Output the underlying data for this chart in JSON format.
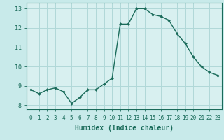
{
  "x": [
    0,
    1,
    2,
    3,
    4,
    5,
    6,
    7,
    8,
    9,
    10,
    11,
    12,
    13,
    14,
    15,
    16,
    17,
    18,
    19,
    20,
    21,
    22,
    23
  ],
  "y": [
    8.8,
    8.6,
    8.8,
    8.9,
    8.7,
    8.1,
    8.4,
    8.8,
    8.8,
    9.1,
    9.4,
    12.2,
    12.2,
    13.0,
    13.0,
    12.7,
    12.6,
    12.4,
    11.7,
    11.2,
    10.5,
    10.0,
    9.7,
    9.55
  ],
  "xlabel": "Humidex (Indice chaleur)",
  "xlim": [
    -0.5,
    23.5
  ],
  "ylim": [
    7.8,
    13.3
  ],
  "yticks": [
    8,
    9,
    10,
    11,
    12,
    13
  ],
  "xticks": [
    0,
    1,
    2,
    3,
    4,
    5,
    6,
    7,
    8,
    9,
    10,
    11,
    12,
    13,
    14,
    15,
    16,
    17,
    18,
    19,
    20,
    21,
    22,
    23
  ],
  "xtick_labels": [
    "0",
    "1",
    "2",
    "3",
    "4",
    "5",
    "6",
    "7",
    "8",
    "9",
    "10",
    "11",
    "12",
    "13",
    "14",
    "15",
    "16",
    "17",
    "18",
    "19",
    "20",
    "21",
    "22",
    "23"
  ],
  "line_color": "#1a6b5a",
  "marker": "D",
  "marker_size": 2.0,
  "bg_color": "#c8eaea",
  "grid_color": "#b0d8d8",
  "axis_bg": "#d8f0f0",
  "grid_lw": 0.7,
  "line_lw": 1.0,
  "tick_fontsize": 5.5,
  "xlabel_fontsize": 7.0
}
